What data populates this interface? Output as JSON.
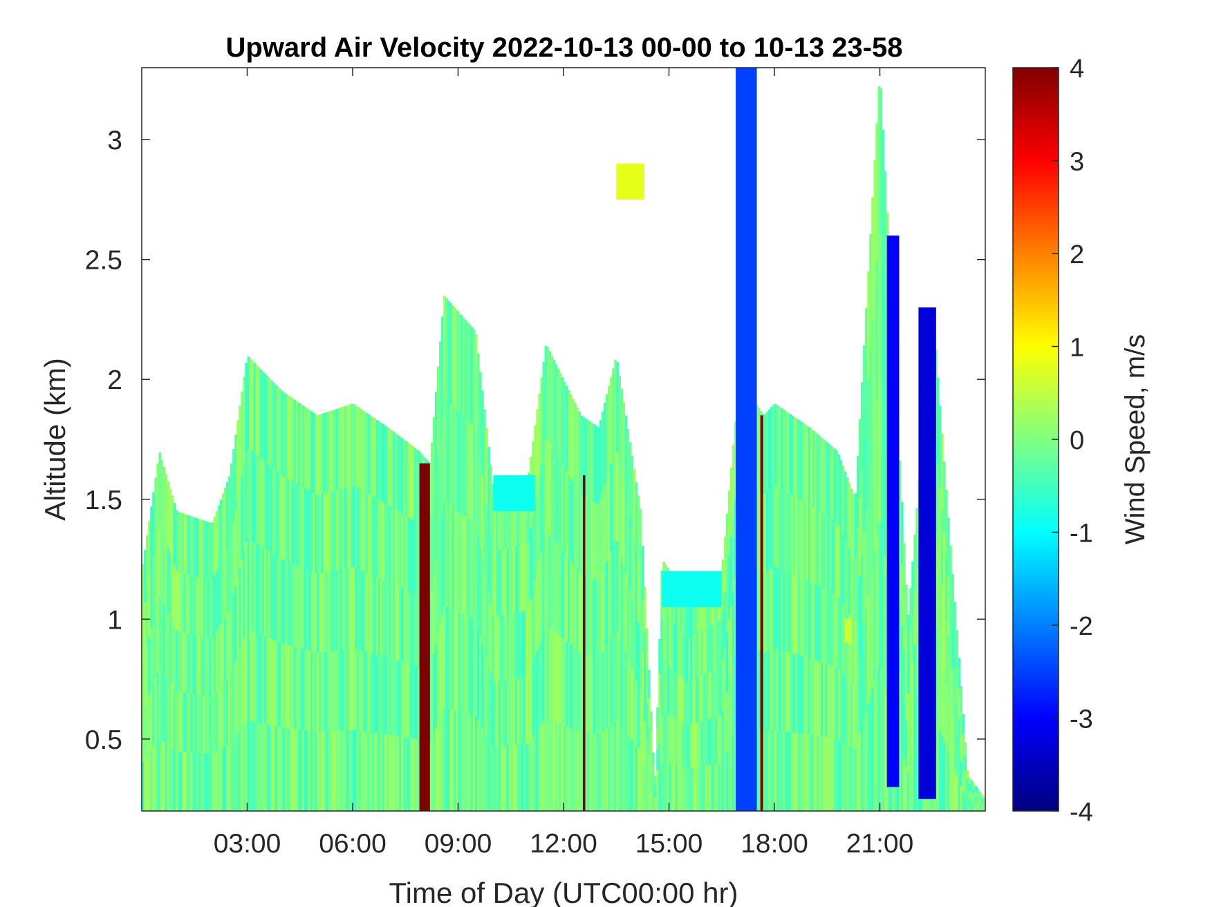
{
  "chart_data": {
    "type": "heatmap",
    "title": "Upward Air Velocity 2022-10-13 00-00 to 10-13 23-58",
    "xlabel": "Time of Day (UTC00:00 hr)",
    "ylabel": "Altitude (km)",
    "colorbar_label": "Wind Speed, m/s",
    "xlim": [
      0,
      24
    ],
    "ylim": [
      0.2,
      3.3
    ],
    "clim": [
      -4,
      4
    ],
    "colormap": "jet",
    "x_ticks": [
      {
        "value": 3,
        "label": "03:00"
      },
      {
        "value": 6,
        "label": "06:00"
      },
      {
        "value": 9,
        "label": "09:00"
      },
      {
        "value": 12,
        "label": "12:00"
      },
      {
        "value": 15,
        "label": "15:00"
      },
      {
        "value": 18,
        "label": "18:00"
      },
      {
        "value": 21,
        "label": "21:00"
      }
    ],
    "y_ticks": [
      {
        "value": 0.5,
        "label": "0.5"
      },
      {
        "value": 1,
        "label": "1"
      },
      {
        "value": 1.5,
        "label": "1.5"
      },
      {
        "value": 2,
        "label": "2"
      },
      {
        "value": 2.5,
        "label": "2.5"
      },
      {
        "value": 3,
        "label": "3"
      }
    ],
    "colorbar_ticks": [
      {
        "value": 4,
        "label": "4"
      },
      {
        "value": 3,
        "label": "3"
      },
      {
        "value": 2,
        "label": "2"
      },
      {
        "value": 1,
        "label": "1"
      },
      {
        "value": 0,
        "label": "0"
      },
      {
        "value": -1,
        "label": "-1"
      },
      {
        "value": -2,
        "label": "-2"
      },
      {
        "value": -3,
        "label": "-3"
      },
      {
        "value": -4,
        "label": "-4"
      }
    ],
    "data_extent_profile": [
      {
        "time": 0.0,
        "top_km": 1.2
      },
      {
        "time": 0.5,
        "top_km": 1.7
      },
      {
        "time": 1.0,
        "top_km": 1.45
      },
      {
        "time": 2.0,
        "top_km": 1.4
      },
      {
        "time": 2.5,
        "top_km": 1.6
      },
      {
        "time": 3.0,
        "top_km": 2.1
      },
      {
        "time": 4.0,
        "top_km": 1.95
      },
      {
        "time": 5.0,
        "top_km": 1.85
      },
      {
        "time": 6.0,
        "top_km": 1.9
      },
      {
        "time": 7.0,
        "top_km": 1.8
      },
      {
        "time": 7.9,
        "top_km": 1.7
      },
      {
        "time": 8.2,
        "top_km": 1.65
      },
      {
        "time": 8.6,
        "top_km": 2.35
      },
      {
        "time": 9.5,
        "top_km": 2.2
      },
      {
        "time": 10.0,
        "top_km": 1.55
      },
      {
        "time": 11.0,
        "top_km": 1.6
      },
      {
        "time": 11.5,
        "top_km": 2.15
      },
      {
        "time": 12.5,
        "top_km": 1.85
      },
      {
        "time": 13.0,
        "top_km": 1.8
      },
      {
        "time": 13.5,
        "top_km": 2.1
      },
      {
        "time": 14.2,
        "top_km": 1.45
      },
      {
        "time": 14.6,
        "top_km": 0.3
      },
      {
        "time": 14.8,
        "top_km": 1.25
      },
      {
        "time": 15.5,
        "top_km": 1.1
      },
      {
        "time": 16.5,
        "top_km": 1.2
      },
      {
        "time": 17.0,
        "top_km": 2.0
      },
      {
        "time": 17.7,
        "top_km": 1.85
      },
      {
        "time": 18.0,
        "top_km": 1.9
      },
      {
        "time": 19.0,
        "top_km": 1.8
      },
      {
        "time": 19.8,
        "top_km": 1.7
      },
      {
        "time": 20.3,
        "top_km": 1.5
      },
      {
        "time": 21.0,
        "top_km": 3.3
      },
      {
        "time": 21.8,
        "top_km": 1.0
      },
      {
        "time": 22.5,
        "top_km": 2.3
      },
      {
        "time": 23.5,
        "top_km": 0.35
      },
      {
        "time": 24.0,
        "top_km": 0.25
      }
    ],
    "features": [
      {
        "time_start": 7.9,
        "time_end": 8.2,
        "alt_bottom_km": 0.2,
        "alt_top_km": 1.65,
        "value": 4
      },
      {
        "time_start": 12.55,
        "time_end": 12.62,
        "alt_bottom_km": 0.2,
        "alt_top_km": 1.6,
        "value": 4
      },
      {
        "time_start": 17.6,
        "time_end": 17.68,
        "alt_bottom_km": 0.2,
        "alt_top_km": 1.85,
        "value": 4
      },
      {
        "time_start": 16.9,
        "time_end": 17.5,
        "alt_bottom_km": 0.2,
        "alt_top_km": 3.3,
        "value": -2.5
      },
      {
        "time_start": 21.2,
        "time_end": 21.55,
        "alt_bottom_km": 0.3,
        "alt_top_km": 2.6,
        "value": -3
      },
      {
        "time_start": 22.1,
        "time_end": 22.6,
        "alt_bottom_km": 0.25,
        "alt_top_km": 2.3,
        "value": -3.3
      },
      {
        "time_start": 10.0,
        "time_end": 11.2,
        "alt_bottom_km": 1.45,
        "alt_top_km": 1.6,
        "value": -0.9
      },
      {
        "time_start": 14.8,
        "time_end": 16.5,
        "alt_bottom_km": 1.05,
        "alt_top_km": 1.2,
        "value": -0.9
      },
      {
        "time_start": 13.5,
        "time_end": 14.3,
        "alt_bottom_km": 2.75,
        "alt_top_km": 2.9,
        "value": 0.8
      },
      {
        "time_start": 20.0,
        "time_end": 20.2,
        "alt_bottom_km": 0.9,
        "alt_top_km": 1.0,
        "value": 0.6
      }
    ]
  }
}
